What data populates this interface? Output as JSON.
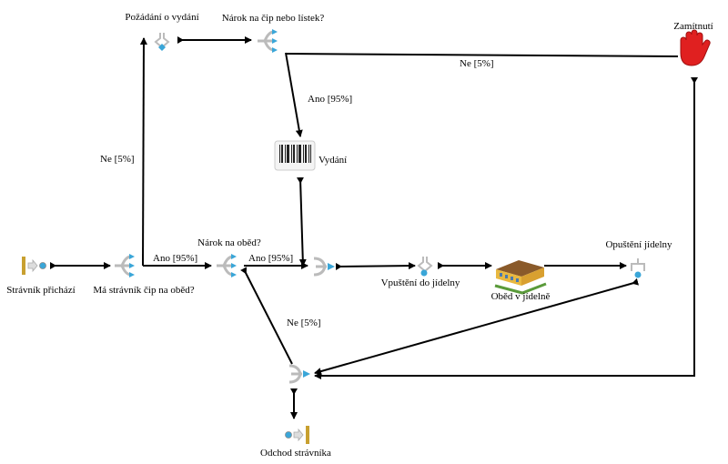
{
  "nodes": {
    "start": "Strávník přichází",
    "has_chip": "Má strávník čip na oběd?",
    "meal_claim": "Nárok na oběd?",
    "request": "Požádání o vydání",
    "chip_or_ticket": "Nárok na čip nebo lístek?",
    "issue": "Vydání",
    "reject": "Zamítnutí",
    "admit": "Vpuštění do jídelny",
    "lunch": "Oběd v jídelně",
    "leave_canteen": "Opuštění jídelny",
    "exit": "Odchod strávníka"
  },
  "edges": {
    "has_chip_no": "Ne [5%]",
    "has_chip_yes": "Ano [95%]",
    "meal_yes": "Ano [95%]",
    "meal_no": "Ne [5%]",
    "chip_ticket_yes": "Ano [95%]",
    "chip_ticket_no": "Ne [5%]"
  },
  "icons": {
    "start": "start-event-icon",
    "decision": "decision-icon",
    "merge": "merge-icon",
    "activity": "activity-icon",
    "barcode": "barcode-icon",
    "reject": "stop-hand-icon",
    "building": "canteen-building-icon",
    "end": "end-event-icon"
  },
  "colors": {
    "accent": "#3aa6d8",
    "reject": "#e02020",
    "start_bar": "#c8a030"
  }
}
